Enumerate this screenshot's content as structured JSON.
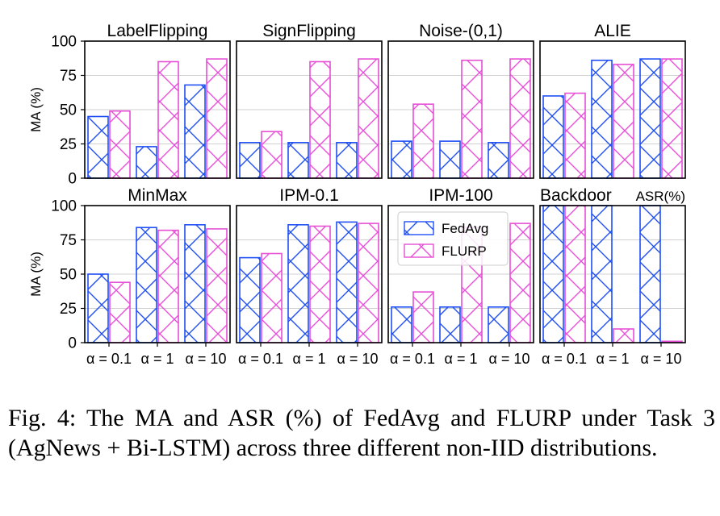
{
  "colors": {
    "fedavg": "#1f4ff5",
    "flurp": "#e64fd6",
    "grid": "#d0d0d0",
    "frame": "#000000"
  },
  "chart_data": {
    "type": "bar",
    "layout": "grid 2 rows x 4 columns of panels",
    "categories": [
      "α = 0.1",
      "α = 1",
      "α = 10"
    ],
    "ylabel": "MA (%)",
    "ylim": [
      0,
      100
    ],
    "yticks": [
      0,
      25,
      50,
      75,
      100
    ],
    "grid": "horizontal",
    "legend": {
      "location": "panel IPM-100, top",
      "entries": [
        "FedAvg",
        "FLURP"
      ]
    },
    "panels": [
      {
        "title": "LabelFlipping",
        "series": [
          {
            "name": "FedAvg",
            "values": [
              45,
              23,
              68
            ]
          },
          {
            "name": "FLURP",
            "values": [
              49,
              85,
              87
            ]
          }
        ]
      },
      {
        "title": "SignFlipping",
        "series": [
          {
            "name": "FedAvg",
            "values": [
              26,
              26,
              26
            ]
          },
          {
            "name": "FLURP",
            "values": [
              34,
              85,
              87
            ]
          }
        ]
      },
      {
        "title": "Noise-(0,1)",
        "series": [
          {
            "name": "FedAvg",
            "values": [
              27,
              27,
              26
            ]
          },
          {
            "name": "FLURP",
            "values": [
              54,
              86,
              87
            ]
          }
        ]
      },
      {
        "title": "ALIE",
        "series": [
          {
            "name": "FedAvg",
            "values": [
              60,
              86,
              87
            ]
          },
          {
            "name": "FLURP",
            "values": [
              62,
              83,
              87
            ]
          }
        ]
      },
      {
        "title": "MinMax",
        "series": [
          {
            "name": "FedAvg",
            "values": [
              50,
              84,
              86
            ]
          },
          {
            "name": "FLURP",
            "values": [
              44,
              82,
              83
            ]
          }
        ]
      },
      {
        "title": "IPM-0.1",
        "series": [
          {
            "name": "FedAvg",
            "values": [
              62,
              86,
              88
            ]
          },
          {
            "name": "FLURP",
            "values": [
              65,
              85,
              87
            ]
          }
        ]
      },
      {
        "title": "IPM-100",
        "series": [
          {
            "name": "FedAvg",
            "values": [
              26,
              26,
              26
            ]
          },
          {
            "name": "FLURP",
            "values": [
              37,
              84,
              87
            ]
          }
        ]
      },
      {
        "title": "Backdoor",
        "subtitle": "ASR(%)",
        "series": [
          {
            "name": "FedAvg",
            "values": [
              100,
              100,
              100
            ]
          },
          {
            "name": "FLURP",
            "values": [
              100,
              10,
              1
            ]
          }
        ]
      }
    ]
  },
  "caption": "Fig. 4: The MA and ASR (%) of FedAvg and FLURP under Task 3 (AgNews + Bi-LSTM) across three different non-IID distributions."
}
